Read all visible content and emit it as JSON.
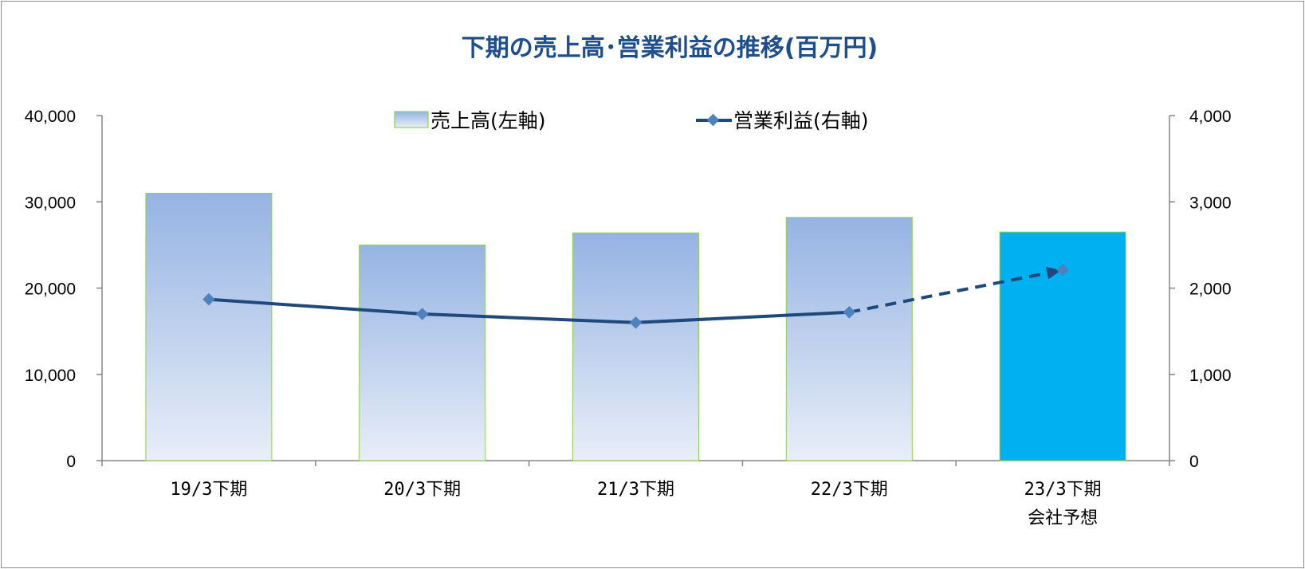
{
  "colors": {
    "title": "#1f4e8c",
    "bar_top": "#95b3e3",
    "bar_bottom": "#e8eef8",
    "bar_forecast": "#00b0f0",
    "bar_edge": "#92d050",
    "line": "#1f497d",
    "marker": "#4f81bd"
  },
  "chart_data": {
    "type": "bar",
    "title": "下期の売上高･営業利益の推移(百万円)",
    "categories": [
      [
        "19/3下期"
      ],
      [
        "20/3下期"
      ],
      [
        "21/3下期"
      ],
      [
        "22/3下期"
      ],
      [
        "23/3下期",
        "会社予想"
      ]
    ],
    "y_left": {
      "lim": [
        0,
        40000
      ],
      "ticks": [
        "0",
        "10,000",
        "20,000",
        "30,000",
        "40,000"
      ]
    },
    "y_right": {
      "lim": [
        0,
        4000
      ],
      "ticks": [
        "0",
        "1,000",
        "2,000",
        "3,000",
        "4,000"
      ]
    },
    "legend_position": "top-center",
    "grid": false,
    "series": [
      {
        "name": "売上高(左軸)",
        "type": "bar",
        "axis": "left",
        "values": [
          31000,
          25000,
          26400,
          28200,
          26500
        ],
        "forecast_index": 4
      },
      {
        "name": "営業利益(右軸)",
        "type": "line",
        "axis": "right",
        "marker": "diamond",
        "values": [
          1870,
          1700,
          1600,
          1720,
          2210
        ],
        "dashed_from_index": 3
      }
    ]
  }
}
